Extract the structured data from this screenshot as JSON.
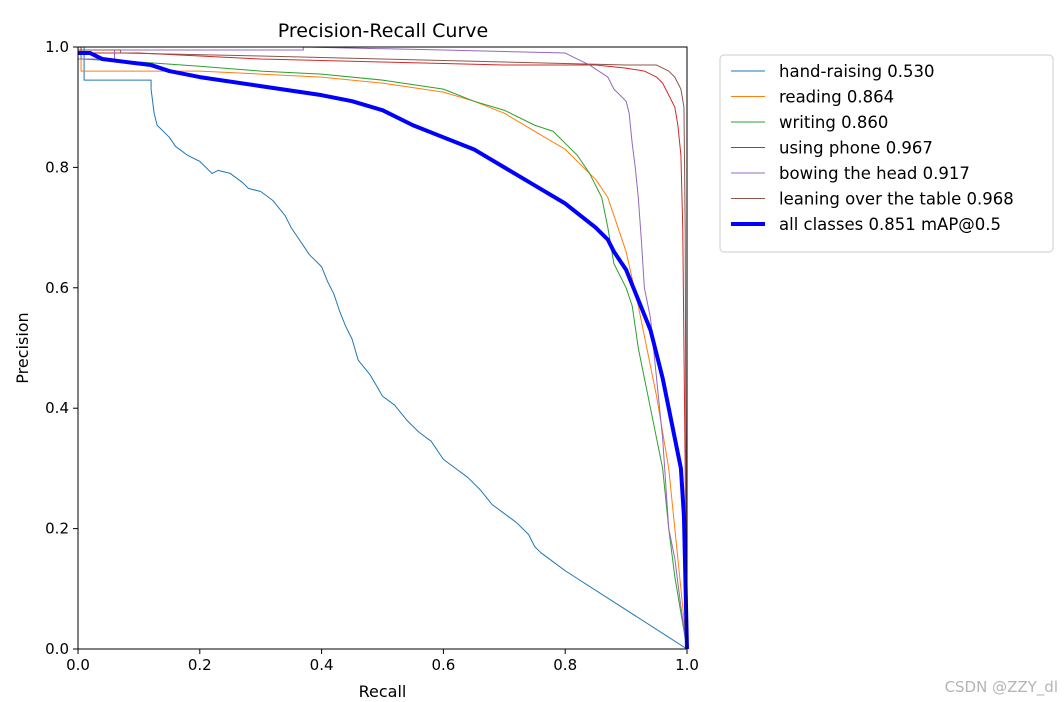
{
  "chart_data": {
    "type": "line",
    "title": "Precision-Recall Curve",
    "xlabel": "Recall",
    "ylabel": "Precision",
    "xlim": [
      0,
      1
    ],
    "ylim": [
      0,
      1
    ],
    "xticks": [
      "0.0",
      "0.2",
      "0.4",
      "0.6",
      "0.8",
      "1.0"
    ],
    "yticks": [
      "0.0",
      "0.2",
      "0.4",
      "0.6",
      "0.8",
      "1.0"
    ],
    "grid": false,
    "legend_position": "outside-top-right",
    "series": [
      {
        "name": "hand-raising",
        "label": "hand-raising 0.530",
        "color": "#1f77b4",
        "width": 1,
        "x": [
          0,
          0.01,
          0.01,
          0.12,
          0.12,
          0.125,
          0.13,
          0.15,
          0.16,
          0.18,
          0.2,
          0.22,
          0.23,
          0.25,
          0.27,
          0.28,
          0.3,
          0.32,
          0.34,
          0.35,
          0.36,
          0.38,
          0.4,
          0.41,
          0.42,
          0.43,
          0.44,
          0.45,
          0.46,
          0.48,
          0.5,
          0.52,
          0.54,
          0.56,
          0.58,
          0.6,
          0.62,
          0.64,
          0.66,
          0.68,
          0.7,
          0.72,
          0.74,
          0.75,
          0.76,
          0.78,
          0.8,
          1.0
        ],
        "y": [
          1.0,
          1.0,
          0.945,
          0.945,
          0.93,
          0.89,
          0.87,
          0.85,
          0.835,
          0.82,
          0.81,
          0.79,
          0.795,
          0.79,
          0.775,
          0.765,
          0.76,
          0.745,
          0.72,
          0.7,
          0.685,
          0.655,
          0.635,
          0.61,
          0.59,
          0.56,
          0.535,
          0.515,
          0.48,
          0.455,
          0.42,
          0.405,
          0.38,
          0.36,
          0.345,
          0.315,
          0.3,
          0.285,
          0.265,
          0.24,
          0.225,
          0.21,
          0.19,
          0.17,
          0.16,
          0.145,
          0.13,
          0.0
        ]
      },
      {
        "name": "reading",
        "label": "reading 0.864",
        "color": "#ff7f0e",
        "width": 1,
        "x": [
          0,
          0.005,
          0.005,
          0.2,
          0.3,
          0.4,
          0.5,
          0.6,
          0.65,
          0.7,
          0.75,
          0.8,
          0.85,
          0.87,
          0.88,
          0.9,
          0.92,
          0.94,
          0.95,
          0.96,
          0.97,
          0.98,
          0.99,
          1.0
        ],
        "y": [
          1.0,
          1.0,
          0.96,
          0.96,
          0.955,
          0.95,
          0.94,
          0.925,
          0.91,
          0.89,
          0.86,
          0.83,
          0.78,
          0.75,
          0.72,
          0.66,
          0.57,
          0.47,
          0.42,
          0.36,
          0.3,
          0.2,
          0.1,
          0.0
        ]
      },
      {
        "name": "writing",
        "label": "writing 0.860",
        "color": "#2ca02c",
        "width": 1,
        "x": [
          0,
          0.005,
          0.005,
          0.1,
          0.2,
          0.3,
          0.4,
          0.5,
          0.6,
          0.65,
          0.7,
          0.75,
          0.78,
          0.8,
          0.82,
          0.84,
          0.86,
          0.87,
          0.88,
          0.89,
          0.9,
          0.91,
          0.92,
          0.93,
          0.94,
          0.96,
          0.97,
          0.98,
          0.99,
          1.0
        ],
        "y": [
          1.0,
          1.0,
          0.98,
          0.975,
          0.968,
          0.96,
          0.955,
          0.945,
          0.93,
          0.91,
          0.895,
          0.87,
          0.86,
          0.84,
          0.82,
          0.79,
          0.75,
          0.7,
          0.64,
          0.62,
          0.6,
          0.57,
          0.5,
          0.45,
          0.4,
          0.3,
          0.2,
          0.12,
          0.06,
          0.0
        ]
      },
      {
        "name": "using phone",
        "label": "using phone 0.967",
        "color": "#d62728",
        "width": 1,
        "x": [
          0,
          0.005,
          0.005,
          0.1,
          0.2,
          0.3,
          0.5,
          0.7,
          0.85,
          0.9,
          0.93,
          0.95,
          0.96,
          0.97,
          0.98,
          0.985,
          0.99,
          0.993,
          0.995,
          0.997,
          0.998,
          1.0
        ],
        "y": [
          1.0,
          1.0,
          0.99,
          0.99,
          0.985,
          0.98,
          0.975,
          0.97,
          0.97,
          0.965,
          0.96,
          0.95,
          0.94,
          0.92,
          0.9,
          0.87,
          0.82,
          0.7,
          0.5,
          0.3,
          0.15,
          0.0
        ]
      },
      {
        "name": "bowing the head",
        "label": "bowing the head 0.917",
        "color": "#9467bd",
        "width": 1,
        "x": [
          0,
          0.06,
          0.06,
          0.37,
          0.37,
          0.6,
          0.8,
          0.84,
          0.87,
          0.88,
          0.89,
          0.9,
          0.905,
          0.91,
          0.915,
          0.92,
          0.925,
          0.93,
          0.94,
          0.945,
          0.95,
          0.96,
          0.97,
          0.98,
          0.99,
          1.0
        ],
        "y": [
          0.98,
          0.98,
          0.995,
          0.995,
          1.0,
          0.995,
          0.99,
          0.97,
          0.95,
          0.93,
          0.92,
          0.91,
          0.89,
          0.84,
          0.8,
          0.75,
          0.68,
          0.6,
          0.55,
          0.5,
          0.45,
          0.35,
          0.2,
          0.15,
          0.07,
          0.0
        ]
      },
      {
        "name": "leaning over the table",
        "label": "leaning over the table 0.968",
        "color": "#8c564b",
        "width": 1,
        "x": [
          0,
          0.07,
          0.07,
          0.3,
          0.5,
          0.7,
          0.9,
          0.95,
          0.97,
          0.98,
          0.99,
          0.995,
          0.997,
          0.998,
          0.999,
          1.0
        ],
        "y": [
          0.995,
          0.995,
          0.99,
          0.985,
          0.98,
          0.975,
          0.97,
          0.97,
          0.96,
          0.95,
          0.93,
          0.9,
          0.7,
          0.4,
          0.2,
          0.0
        ]
      },
      {
        "name": "all classes",
        "label": "all classes 0.851 mAP@0.5",
        "color": "#0000ff",
        "width": 4,
        "x": [
          0,
          0.02,
          0.04,
          0.08,
          0.12,
          0.15,
          0.2,
          0.3,
          0.4,
          0.45,
          0.5,
          0.55,
          0.6,
          0.65,
          0.7,
          0.75,
          0.8,
          0.85,
          0.87,
          0.88,
          0.9,
          0.92,
          0.94,
          0.95,
          0.96,
          0.97,
          0.98,
          0.99,
          0.995,
          1.0
        ],
        "y": [
          0.99,
          0.99,
          0.98,
          0.975,
          0.97,
          0.96,
          0.95,
          0.935,
          0.92,
          0.91,
          0.895,
          0.87,
          0.85,
          0.83,
          0.8,
          0.77,
          0.74,
          0.7,
          0.68,
          0.66,
          0.63,
          0.58,
          0.53,
          0.49,
          0.45,
          0.4,
          0.35,
          0.3,
          0.22,
          0.0
        ]
      }
    ]
  },
  "watermark": "CSDN @ZZY_dl"
}
